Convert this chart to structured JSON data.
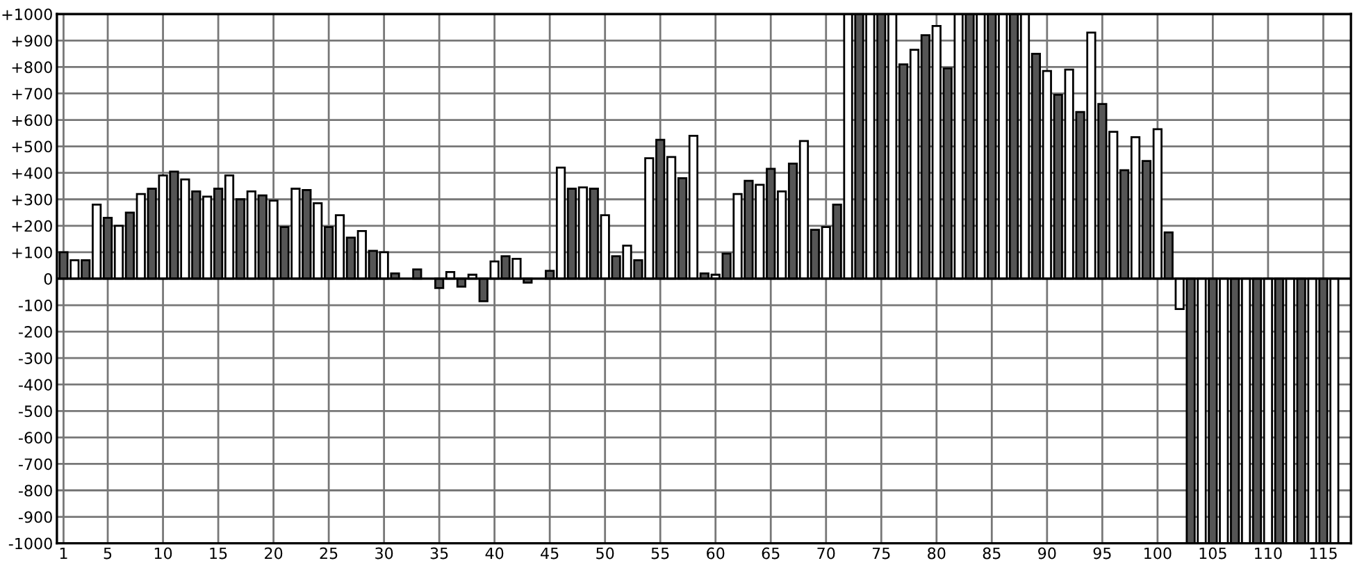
{
  "chart_data": {
    "type": "bar",
    "x": [
      1,
      2,
      3,
      4,
      5,
      6,
      7,
      8,
      9,
      10,
      11,
      12,
      13,
      14,
      15,
      16,
      17,
      18,
      19,
      20,
      21,
      22,
      23,
      24,
      25,
      26,
      27,
      28,
      29,
      30,
      31,
      32,
      33,
      34,
      35,
      36,
      37,
      38,
      39,
      40,
      41,
      42,
      43,
      44,
      45,
      46,
      47,
      48,
      49,
      50,
      51,
      52,
      53,
      54,
      55,
      56,
      57,
      58,
      59,
      60,
      61,
      62,
      63,
      64,
      65,
      66,
      67,
      68,
      69,
      70,
      71,
      72,
      73,
      74,
      75,
      76,
      77,
      78,
      79,
      80,
      81,
      82,
      83,
      84,
      85,
      86,
      87,
      88,
      89,
      90,
      91,
      92,
      93,
      94,
      95,
      96,
      97,
      98,
      99,
      100,
      101,
      102,
      103,
      104,
      105,
      106,
      107,
      108,
      109,
      110,
      111,
      112,
      113,
      114,
      115,
      116
    ],
    "values": [
      100,
      70,
      70,
      280,
      230,
      200,
      250,
      320,
      340,
      390,
      405,
      375,
      330,
      310,
      340,
      390,
      300,
      330,
      315,
      295,
      195,
      340,
      335,
      285,
      195,
      240,
      155,
      180,
      105,
      100,
      20,
      null,
      35,
      null,
      -35,
      25,
      -30,
      15,
      -85,
      65,
      85,
      75,
      -15,
      null,
      30,
      420,
      340,
      345,
      340,
      240,
      85,
      125,
      70,
      455,
      525,
      460,
      380,
      540,
      20,
      15,
      95,
      320,
      370,
      355,
      415,
      330,
      435,
      520,
      185,
      195,
      280,
      1000,
      1000,
      1000,
      1000,
      1000,
      810,
      865,
      920,
      955,
      795,
      1000,
      1000,
      1000,
      1000,
      1000,
      1000,
      1000,
      850,
      785,
      695,
      790,
      630,
      930,
      660,
      555,
      410,
      535,
      445,
      565,
      175,
      -115,
      -1000,
      -1000,
      -1000,
      -1000,
      -1000,
      -1000,
      -1000,
      -1000,
      -1000,
      -1000,
      -1000,
      -1000,
      -1000,
      -1000
    ],
    "colors": [
      "#555555",
      "#ffffff",
      "#555555",
      "#ffffff",
      "#555555",
      "#ffffff",
      "#555555",
      "#ffffff",
      "#555555",
      "#ffffff",
      "#555555",
      "#ffffff",
      "#555555",
      "#ffffff",
      "#555555",
      "#ffffff",
      "#555555",
      "#ffffff",
      "#555555",
      "#ffffff",
      "#555555",
      "#ffffff",
      "#555555",
      "#ffffff",
      "#555555",
      "#ffffff",
      "#555555",
      "#ffffff",
      "#555555",
      "#ffffff",
      "#555555",
      "#ffffff",
      "#555555",
      "#ffffff",
      "#555555",
      "#ffffff",
      "#555555",
      "#ffffff",
      "#555555",
      "#ffffff",
      "#555555",
      "#ffffff",
      "#555555",
      "#ffffff",
      "#555555",
      "#ffffff",
      "#555555",
      "#ffffff",
      "#555555",
      "#ffffff",
      "#555555",
      "#ffffff",
      "#555555",
      "#ffffff",
      "#555555",
      "#ffffff",
      "#555555",
      "#ffffff",
      "#555555",
      "#ffffff",
      "#555555",
      "#ffffff",
      "#555555",
      "#ffffff",
      "#555555",
      "#ffffff",
      "#555555",
      "#ffffff",
      "#555555",
      "#ffffff",
      "#555555",
      "#ffffff",
      "#555555",
      "#ffffff",
      "#555555",
      "#ffffff",
      "#555555",
      "#ffffff",
      "#555555",
      "#ffffff",
      "#555555",
      "#ffffff",
      "#555555",
      "#ffffff",
      "#555555",
      "#ffffff",
      "#555555",
      "#ffffff",
      "#555555",
      "#ffffff",
      "#555555",
      "#ffffff",
      "#555555",
      "#ffffff",
      "#555555",
      "#ffffff",
      "#555555",
      "#ffffff",
      "#555555",
      "#ffffff",
      "#555555",
      "#ffffff",
      "#555555",
      "#ffffff",
      "#555555",
      "#ffffff",
      "#555555",
      "#ffffff",
      "#555555",
      "#ffffff",
      "#555555",
      "#ffffff",
      "#555555",
      "#ffffff",
      "#555555",
      "#ffffff"
    ],
    "xlim": [
      0.4,
      117.5
    ],
    "xticks": [
      1,
      5,
      10,
      15,
      20,
      25,
      30,
      35,
      40,
      45,
      50,
      55,
      60,
      65,
      70,
      75,
      80,
      85,
      90,
      95,
      100,
      105,
      110,
      115
    ],
    "ylim": [
      -1000,
      1000
    ],
    "yticks": [
      {
        "value": -1000,
        "label": "-1000"
      },
      {
        "value": -900,
        "label": "-900"
      },
      {
        "value": -800,
        "label": "-800"
      },
      {
        "value": -700,
        "label": "-700"
      },
      {
        "value": -600,
        "label": "-600"
      },
      {
        "value": -500,
        "label": "-500"
      },
      {
        "value": -400,
        "label": "-400"
      },
      {
        "value": -300,
        "label": "-300"
      },
      {
        "value": -200,
        "label": "-200"
      },
      {
        "value": -100,
        "label": "-100"
      },
      0,
      {
        "value": 100,
        "label": "+100"
      },
      {
        "value": 200,
        "label": "+200"
      },
      {
        "value": 300,
        "label": "+300"
      },
      {
        "value": 400,
        "label": "+400"
      },
      {
        "value": 500,
        "label": "+500"
      },
      {
        "value": 600,
        "label": "+600"
      },
      {
        "value": 700,
        "label": "+700"
      },
      {
        "value": 800,
        "label": "+800"
      },
      {
        "value": 900,
        "label": "+900"
      },
      {
        "value": 1000,
        "label": "+1000"
      }
    ],
    "grid": true
  }
}
